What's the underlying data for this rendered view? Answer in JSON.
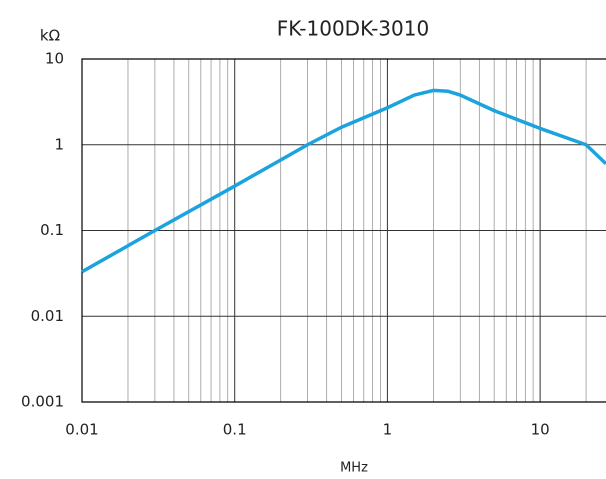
{
  "chart_data": {
    "type": "line",
    "title": "FK-100DK-3010",
    "y_label": "kΩ",
    "x_label": "MHz",
    "x": [
      0.01,
      0.03,
      0.1,
      0.3,
      0.5,
      1,
      1.5,
      2,
      2.5,
      3,
      5,
      10,
      20,
      27
    ],
    "series": [
      {
        "name": "FK-100DK-3010",
        "color": "#1ba3dd",
        "values": [
          0.033,
          0.1,
          0.33,
          1.0,
          1.6,
          2.7,
          3.8,
          4.3,
          4.2,
          3.8,
          2.5,
          1.55,
          1.0,
          0.6
        ]
      }
    ],
    "xlim": [
      0.01,
      27
    ],
    "ylim": [
      0.001,
      10
    ],
    "xticks": [
      0.01,
      0.1,
      1,
      10
    ],
    "yticks": [
      0.001,
      0.01,
      0.1,
      1,
      10
    ],
    "xscale": "log",
    "yscale": "log",
    "grid": true,
    "minor_grid": true
  }
}
